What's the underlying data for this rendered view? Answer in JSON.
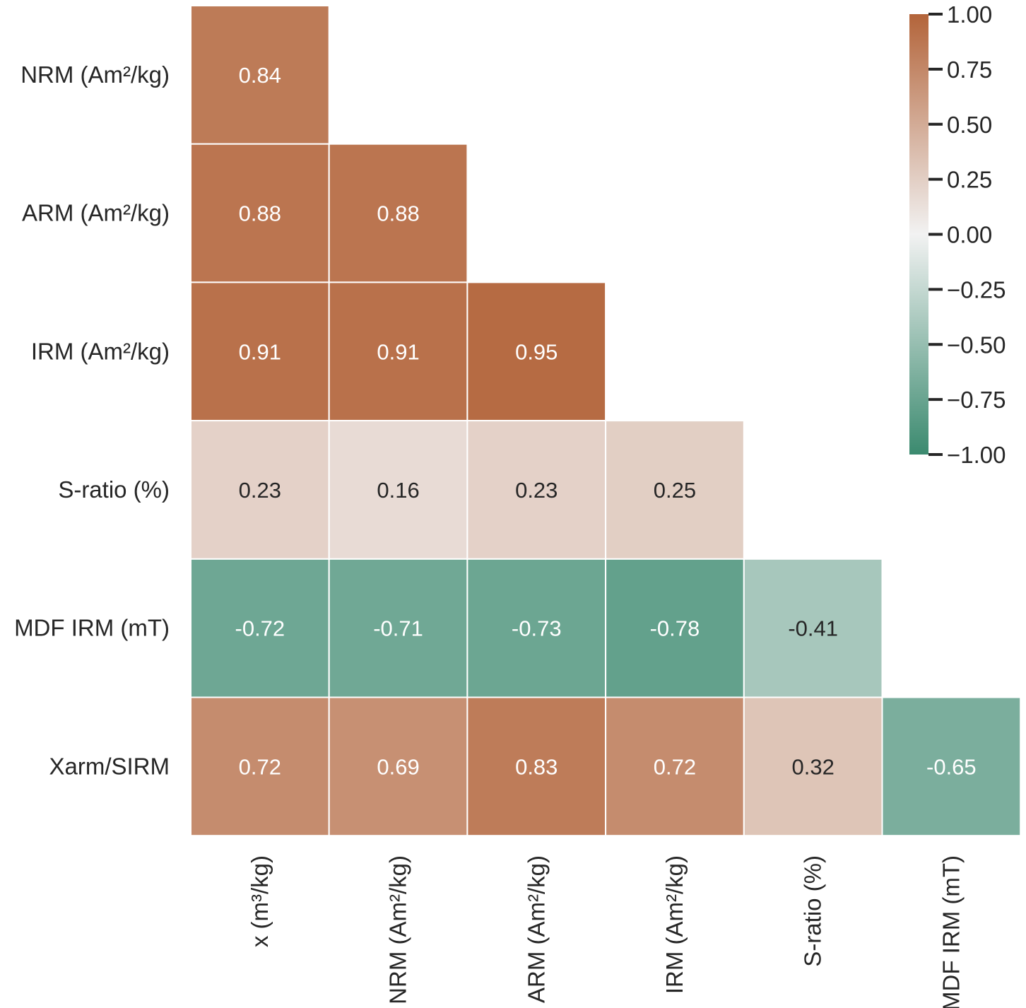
{
  "chart_data": {
    "type": "heatmap",
    "title": "",
    "mask": "lower-triangle",
    "row_labels": [
      "NRM (Am²/kg)",
      "ARM (Am²/kg)",
      "IRM (Am²/kg)",
      "S-ratio (%)",
      "MDF IRM (mT)",
      "Xarm/SIRM"
    ],
    "col_labels": [
      "x (m³/kg)",
      "NRM (Am²/kg)",
      "ARM (Am²/kg)",
      "IRM (Am²/kg)",
      "S-ratio (%)",
      "MDF IRM (mT)"
    ],
    "values": [
      [
        0.84
      ],
      [
        0.88,
        0.88
      ],
      [
        0.91,
        0.91,
        0.95
      ],
      [
        0.23,
        0.16,
        0.23,
        0.25
      ],
      [
        -0.72,
        -0.71,
        -0.73,
        -0.78,
        -0.41
      ],
      [
        0.72,
        0.69,
        0.83,
        0.72,
        0.32,
        -0.65
      ]
    ],
    "value_labels": [
      [
        "0.84"
      ],
      [
        "0.88",
        "0.88"
      ],
      [
        "0.91",
        "0.91",
        "0.95"
      ],
      [
        "0.23",
        "0.16",
        "0.23",
        "0.25"
      ],
      [
        "-0.72",
        "-0.71",
        "-0.73",
        "-0.78",
        "-0.41"
      ],
      [
        "0.72",
        "0.69",
        "0.83",
        "0.72",
        "0.32",
        "-0.65"
      ]
    ],
    "colorbar": {
      "vmin": -1.0,
      "vmax": 1.0,
      "ticks": [
        1.0,
        0.75,
        0.5,
        0.25,
        0.0,
        -0.25,
        -0.5,
        -0.75,
        -1.0
      ],
      "tick_labels": [
        "1.00",
        "0.75",
        "0.50",
        "0.25",
        "0.00",
        "−0.25",
        "−0.50",
        "−0.75",
        "−1.00"
      ],
      "color_low": "#3b8a6f",
      "color_mid": "#f2f2f2",
      "color_high": "#b3643a"
    },
    "text_color_light": "#ffffff",
    "text_color_dark": "#262626"
  }
}
